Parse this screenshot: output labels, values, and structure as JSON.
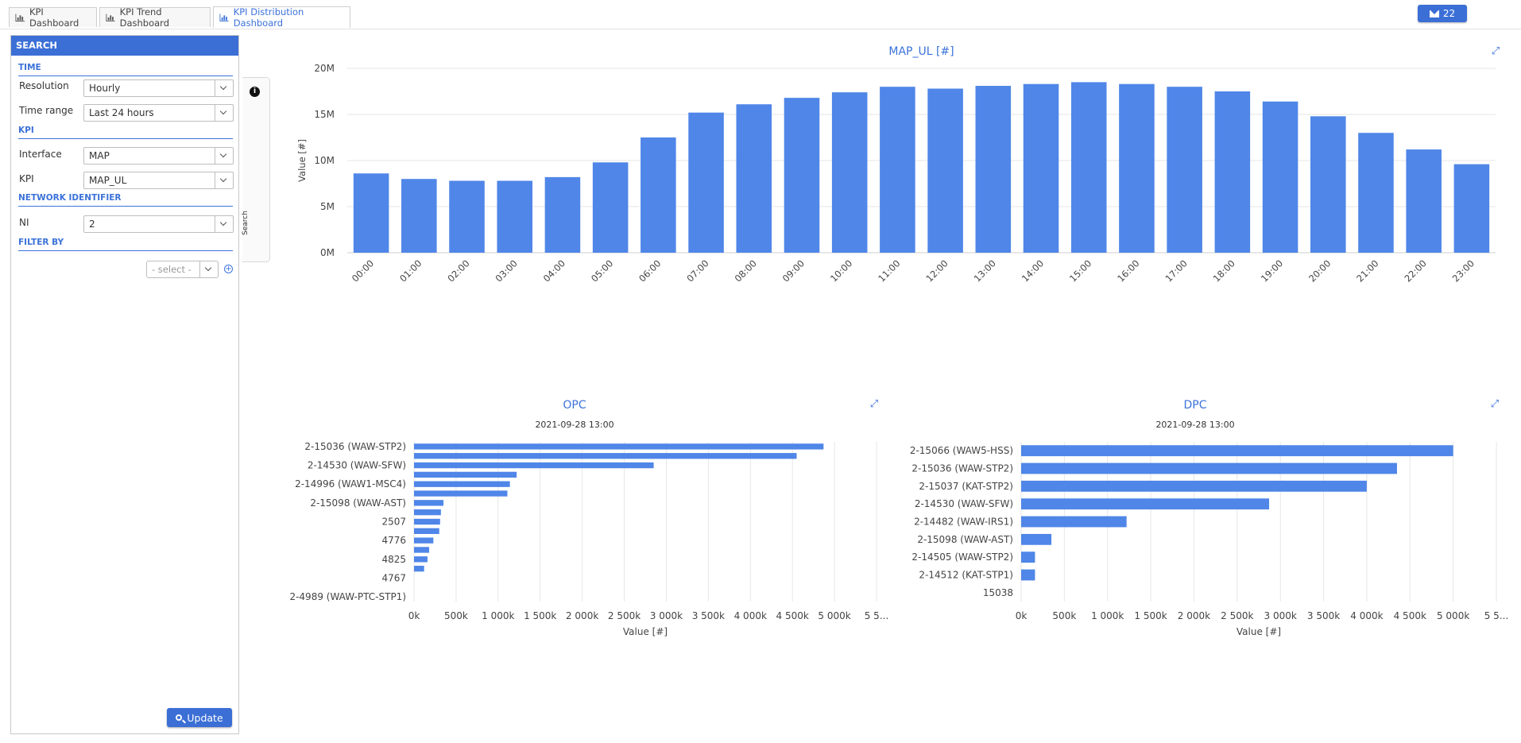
{
  "tabs": [
    {
      "label": "KPI Dashboard",
      "active": false
    },
    {
      "label": "KPI Trend Dashboard",
      "active": false
    },
    {
      "label": "KPI Distribution Dashboard",
      "active": true
    }
  ],
  "notifications": {
    "count": "22"
  },
  "search": {
    "title": "SEARCH",
    "time_section": "TIME",
    "resolution_label": "Resolution",
    "resolution_value": "Hourly",
    "time_range_label": "Time range",
    "time_range_value": "Last 24 hours",
    "kpi_section": "KPI",
    "interface_label": "Interface",
    "interface_value": "MAP",
    "kpi_label": "KPI",
    "kpi_value": "MAP_UL",
    "network_section": "NETWORK IDENTIFIER",
    "ni_label": "NI",
    "ni_value": "2",
    "filter_section": "FILTER BY",
    "filter_placeholder": "- select -",
    "update_label": "Update",
    "side_tab_label": "Search"
  },
  "colors": {
    "accent": "#3b6fd6",
    "bar": "#4f86e8",
    "title": "#3b72d9"
  },
  "chart_data": [
    {
      "type": "bar",
      "title": "MAP_UL [#]",
      "ylabel": "Value [#]",
      "ylim": [
        0,
        20000000
      ],
      "yticks": [
        "0M",
        "5M",
        "10M",
        "15M",
        "20M"
      ],
      "categories": [
        "00:00",
        "01:00",
        "02:00",
        "03:00",
        "04:00",
        "05:00",
        "06:00",
        "07:00",
        "08:00",
        "09:00",
        "10:00",
        "11:00",
        "12:00",
        "13:00",
        "14:00",
        "15:00",
        "16:00",
        "17:00",
        "18:00",
        "19:00",
        "20:00",
        "21:00",
        "22:00",
        "23:00"
      ],
      "values": [
        8600000,
        8000000,
        7800000,
        7800000,
        8200000,
        9800000,
        12500000,
        15200000,
        16100000,
        16800000,
        17400000,
        18000000,
        17800000,
        18100000,
        18300000,
        18500000,
        18300000,
        18000000,
        17500000,
        16400000,
        14800000,
        13000000,
        11200000,
        9600000
      ]
    },
    {
      "type": "bar",
      "orientation": "horizontal",
      "title": "OPC",
      "subtitle": "2021-09-28 13:00",
      "xlabel": "Value [#]",
      "xticks": [
        "0k",
        "500k",
        "1 000k",
        "1 500k",
        "2 000k",
        "2 500k",
        "3 000k",
        "3 500k",
        "4 000k",
        "4 500k",
        "5 000k",
        "5 5..."
      ],
      "xlim": [
        0,
        5500000
      ],
      "category_labels": [
        "2-15036 (WAW-STP2)",
        "",
        "2-14530 (WAW-SFW)",
        "",
        "2-14996 (WAW1-MSC4)",
        "",
        "2-15098 (WAW-AST)",
        "",
        "2507",
        "",
        "4776",
        "",
        "4825",
        "",
        "4767",
        "",
        "2-4989 (WAW-PTC-STP1)"
      ],
      "values": [
        4870000,
        4550000,
        2850000,
        1220000,
        1140000,
        1110000,
        350000,
        320000,
        310000,
        300000,
        230000,
        180000,
        160000,
        120000,
        0,
        0,
        0
      ]
    },
    {
      "type": "bar",
      "orientation": "horizontal",
      "title": "DPC",
      "subtitle": "2021-09-28 13:00",
      "xlabel": "Value [#]",
      "xticks": [
        "0k",
        "500k",
        "1 000k",
        "1 500k",
        "2 000k",
        "2 500k",
        "3 000k",
        "3 500k",
        "4 000k",
        "4 500k",
        "5 000k",
        "5 5..."
      ],
      "xlim": [
        0,
        5500000
      ],
      "categories": [
        "2-15066 (WAW5-HSS)",
        "2-15036 (WAW-STP2)",
        "2-15037 (KAT-STP2)",
        "2-14530 (WAW-SFW)",
        "2-14482 (WAW-IRS1)",
        "2-15098 (WAW-AST)",
        "2-14505 (WAW-STP2)",
        "2-14512 (KAT-STP1)",
        "15038"
      ],
      "values": [
        5000000,
        4350000,
        4000000,
        2870000,
        1220000,
        350000,
        160000,
        160000,
        0
      ]
    }
  ]
}
